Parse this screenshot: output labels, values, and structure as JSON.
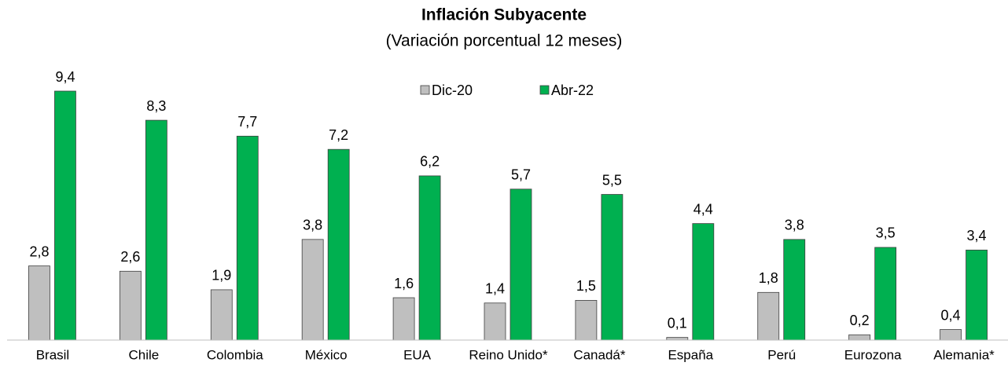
{
  "chart_data": {
    "type": "bar",
    "title": "Inflación Subyacente",
    "subtitle": "(Variación porcentual 12 meses)",
    "categories": [
      "Brasil",
      "Chile",
      "Colombia",
      "México",
      "EUA",
      "Reino Unido*",
      "Canadá*",
      "España",
      "Perú",
      "Eurozona",
      "Alemania*"
    ],
    "series": [
      {
        "name": "Dic-20",
        "color": "#bfbfbf",
        "values": [
          2.8,
          2.6,
          1.9,
          3.8,
          1.6,
          1.4,
          1.5,
          0.1,
          1.8,
          0.2,
          0.4
        ],
        "value_labels": [
          "2,8",
          "2,6",
          "1,9",
          "3,8",
          "1,6",
          "1,4",
          "1,5",
          "0,1",
          "1,8",
          "0,2",
          "0,4"
        ]
      },
      {
        "name": "Abr-22",
        "color": "#00b050",
        "values": [
          9.4,
          8.3,
          7.7,
          7.2,
          6.2,
          5.7,
          5.5,
          4.4,
          3.8,
          3.5,
          3.4
        ],
        "value_labels": [
          "9,4",
          "8,3",
          "7,7",
          "7,2",
          "6,2",
          "5,7",
          "5,5",
          "4,4",
          "3,8",
          "3,5",
          "3,4"
        ]
      }
    ],
    "legend": "top"
  }
}
